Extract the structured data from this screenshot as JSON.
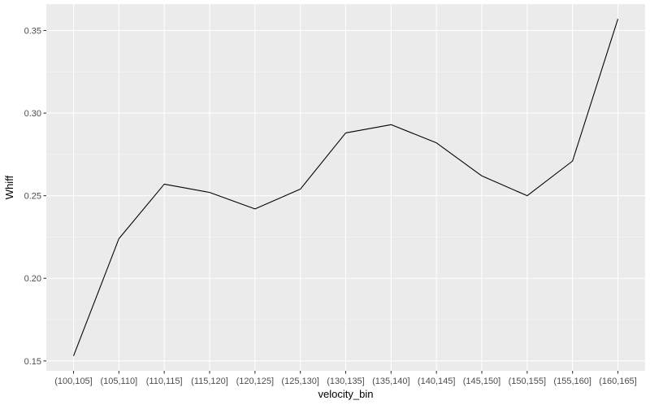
{
  "chart_data": {
    "type": "line",
    "xlabel": "velocity_bin",
    "ylabel": "Whiff",
    "categories": [
      "(100,105]",
      "(105,110]",
      "(110,115]",
      "(115,120]",
      "(120,125]",
      "(125,130]",
      "(130,135]",
      "(135,140]",
      "(140,145]",
      "(145,150]",
      "(150,155]",
      "(155,160]",
      "(160,165]"
    ],
    "series": [
      {
        "values": [
          0.153,
          0.224,
          0.257,
          0.252,
          0.242,
          0.254,
          0.288,
          0.293,
          0.282,
          0.262,
          0.25,
          0.271,
          0.357
        ]
      }
    ],
    "ylim": [
      0.144,
      0.366
    ],
    "yticks": [
      0.15,
      0.2,
      0.25,
      0.3,
      0.35
    ],
    "ytick_labels": [
      "0.15",
      "0.20",
      "0.25",
      "0.30",
      "0.35"
    ],
    "grid": true,
    "line_color": "#000000",
    "panel_color": "#ebebeb"
  }
}
